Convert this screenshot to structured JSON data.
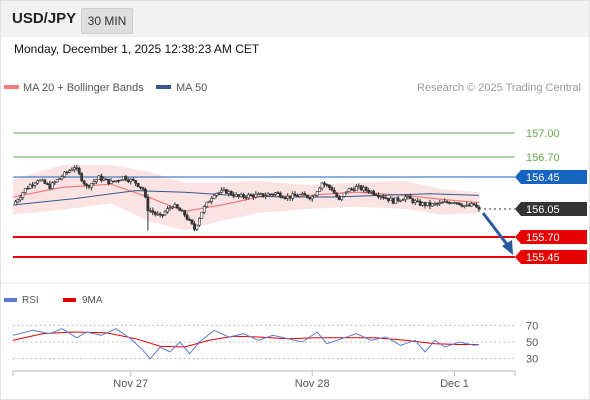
{
  "header": {
    "pair": "USD/JPY",
    "timeframe": "30 MIN",
    "datetime": "Monday, December 1, 2025 12:38:23 AM CET"
  },
  "legend": {
    "ma20_label": "MA 20 + Bollinger Bands",
    "ma50_label": "MA 50",
    "copyright": "Research © 2025 Trading Central"
  },
  "colors": {
    "resistance": "#6aa84f",
    "pivot": "#1565c0",
    "support": "#e60000",
    "last_price": "#333333",
    "candle": "#333333",
    "ma20": "#f07c7c",
    "bollinger_fill": "#fadada",
    "ma50": "#34578f",
    "rsi": "#5b7bd5",
    "rsi_ma": "#e00000",
    "arrow": "#2a5a9e"
  },
  "chart_data": [
    {
      "type": "candlestick",
      "title": "USD/JPY",
      "timeframe": "30 MIN",
      "x_ticks": [
        "Nov 27",
        "Nov 28",
        "Dec 1"
      ],
      "y_range": [
        155.25,
        157.3
      ],
      "levels": [
        {
          "name": "resistance 2",
          "value": 157.0,
          "label": "157.00",
          "kind": "resistance"
        },
        {
          "name": "resistance 1",
          "value": 156.7,
          "label": "156.70",
          "kind": "resistance"
        },
        {
          "name": "pivot",
          "value": 156.45,
          "label": "156.45",
          "kind": "pivot"
        },
        {
          "name": "last",
          "value": 156.05,
          "label": "156.05",
          "kind": "last"
        },
        {
          "name": "support 1",
          "value": 155.7,
          "label": "155.70",
          "kind": "support"
        },
        {
          "name": "support 2",
          "value": 155.45,
          "label": "155.45",
          "kind": "support"
        }
      ],
      "close_path": [
        [
          0,
          156.1
        ],
        [
          5,
          156.3
        ],
        [
          10,
          156.42
        ],
        [
          15,
          156.33
        ],
        [
          20,
          156.46
        ],
        [
          25,
          156.58
        ],
        [
          30,
          156.33
        ],
        [
          35,
          156.44
        ],
        [
          40,
          156.38
        ],
        [
          45,
          156.45
        ],
        [
          50,
          156.38
        ],
        [
          53,
          156.3
        ],
        [
          55,
          156.05
        ],
        [
          60,
          155.95
        ],
        [
          65,
          156.1
        ],
        [
          70,
          155.98
        ],
        [
          74,
          155.8
        ],
        [
          77,
          156.02
        ],
        [
          82,
          156.25
        ],
        [
          87,
          156.27
        ],
        [
          92,
          156.2
        ],
        [
          97,
          156.22
        ],
        [
          102,
          156.22
        ],
        [
          107,
          156.25
        ],
        [
          112,
          156.2
        ],
        [
          117,
          156.22
        ],
        [
          122,
          156.2
        ],
        [
          126,
          156.38
        ],
        [
          130,
          156.3
        ],
        [
          133,
          156.15
        ],
        [
          136,
          156.28
        ],
        [
          140,
          156.32
        ],
        [
          145,
          156.28
        ],
        [
          150,
          156.22
        ],
        [
          155,
          156.15
        ],
        [
          160,
          156.2
        ],
        [
          165,
          156.12
        ],
        [
          170,
          156.1
        ],
        [
          175,
          156.12
        ],
        [
          180,
          156.15
        ],
        [
          185,
          156.08
        ],
        [
          188,
          156.1
        ],
        [
          190,
          156.03
        ]
      ],
      "lows": [
        {
          "index": 55,
          "value": 155.78
        },
        {
          "index": 73,
          "value": 155.85
        }
      ],
      "ma20_path": [
        [
          0,
          156.2
        ],
        [
          20,
          156.32
        ],
        [
          40,
          156.36
        ],
        [
          55,
          156.2
        ],
        [
          70,
          156.02
        ],
        [
          85,
          156.1
        ],
        [
          100,
          156.2
        ],
        [
          120,
          156.22
        ],
        [
          140,
          156.26
        ],
        [
          160,
          156.22
        ],
        [
          175,
          156.17
        ],
        [
          190,
          156.13
        ]
      ],
      "bollinger_upper": [
        [
          0,
          156.42
        ],
        [
          20,
          156.6
        ],
        [
          40,
          156.6
        ],
        [
          55,
          156.52
        ],
        [
          70,
          156.38
        ],
        [
          85,
          156.38
        ],
        [
          100,
          156.4
        ],
        [
          120,
          156.35
        ],
        [
          140,
          156.38
        ],
        [
          160,
          156.4
        ],
        [
          175,
          156.3
        ],
        [
          190,
          156.26
        ]
      ],
      "bollinger_lower": [
        [
          0,
          155.98
        ],
        [
          20,
          156.04
        ],
        [
          40,
          156.12
        ],
        [
          55,
          155.9
        ],
        [
          70,
          155.78
        ],
        [
          85,
          155.9
        ],
        [
          100,
          156.0
        ],
        [
          120,
          156.05
        ],
        [
          140,
          156.08
        ],
        [
          160,
          156.05
        ],
        [
          175,
          155.98
        ],
        [
          190,
          156.0
        ]
      ],
      "ma50_path": [
        [
          0,
          156.1
        ],
        [
          25,
          156.18
        ],
        [
          50,
          156.28
        ],
        [
          70,
          156.26
        ],
        [
          90,
          156.22
        ],
        [
          110,
          156.2
        ],
        [
          130,
          156.2
        ],
        [
          150,
          156.22
        ],
        [
          170,
          156.24
        ],
        [
          190,
          156.22
        ]
      ],
      "forecast_arrow": {
        "from_value": 156.05,
        "to_value": 155.45
      }
    },
    {
      "type": "line",
      "title": "RSI",
      "series_names": [
        "RSI",
        "9MA"
      ],
      "y_ticks": [
        {
          "value": 70,
          "label": "70"
        },
        {
          "value": 50,
          "label": "50"
        },
        {
          "value": 30,
          "label": "30"
        }
      ],
      "y_range": [
        20,
        80
      ],
      "rsi_path": [
        [
          0,
          58
        ],
        [
          8,
          64
        ],
        [
          15,
          60
        ],
        [
          20,
          66
        ],
        [
          26,
          55
        ],
        [
          30,
          62
        ],
        [
          36,
          58
        ],
        [
          42,
          66
        ],
        [
          48,
          54
        ],
        [
          53,
          40
        ],
        [
          56,
          30
        ],
        [
          60,
          44
        ],
        [
          64,
          38
        ],
        [
          68,
          50
        ],
        [
          72,
          36
        ],
        [
          76,
          50
        ],
        [
          82,
          64
        ],
        [
          88,
          56
        ],
        [
          94,
          60
        ],
        [
          100,
          52
        ],
        [
          106,
          58
        ],
        [
          112,
          54
        ],
        [
          118,
          50
        ],
        [
          124,
          62
        ],
        [
          128,
          48
        ],
        [
          134,
          54
        ],
        [
          140,
          60
        ],
        [
          146,
          52
        ],
        [
          152,
          56
        ],
        [
          158,
          46
        ],
        [
          164,
          52
        ],
        [
          168,
          38
        ],
        [
          172,
          52
        ],
        [
          176,
          44
        ],
        [
          182,
          50
        ],
        [
          188,
          46
        ],
        [
          190,
          47
        ]
      ],
      "ma_path": [
        [
          0,
          52
        ],
        [
          12,
          60
        ],
        [
          24,
          62
        ],
        [
          38,
          61
        ],
        [
          50,
          54
        ],
        [
          60,
          45
        ],
        [
          70,
          44
        ],
        [
          80,
          52
        ],
        [
          90,
          57
        ],
        [
          100,
          56
        ],
        [
          112,
          54
        ],
        [
          124,
          55
        ],
        [
          136,
          55
        ],
        [
          148,
          55
        ],
        [
          160,
          52
        ],
        [
          172,
          48
        ],
        [
          182,
          47
        ],
        [
          190,
          47
        ]
      ]
    }
  ],
  "rsi_legend": {
    "rsi_label": "RSI",
    "ma_label": "9MA"
  }
}
